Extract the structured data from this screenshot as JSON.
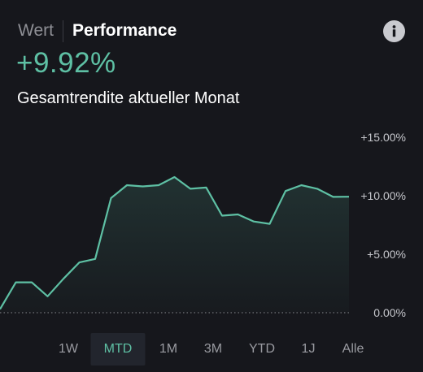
{
  "tabs": [
    {
      "label": "Wert",
      "active": false
    },
    {
      "label": "Performance",
      "active": true
    }
  ],
  "info_icon": "info-icon",
  "performance": {
    "value": "+9.92%",
    "subtitle": "Gesamtrendite aktueller Monat"
  },
  "colors": {
    "accent": "#5ec0a4",
    "background": "#16171c",
    "baseline": "#8a8b90"
  },
  "chart_data": {
    "type": "area",
    "x": [
      0,
      1,
      2,
      3,
      4,
      5,
      6,
      7,
      8,
      9,
      10,
      11,
      12,
      13,
      14,
      15,
      16,
      17,
      18,
      19,
      20,
      21,
      22
    ],
    "values": [
      0.3,
      2.6,
      2.6,
      1.4,
      2.9,
      4.3,
      4.6,
      9.8,
      10.9,
      10.8,
      10.9,
      11.6,
      10.6,
      10.7,
      8.3,
      8.4,
      7.8,
      7.6,
      10.4,
      10.9,
      10.6,
      9.9,
      9.92
    ],
    "ylim": [
      0,
      15
    ],
    "yticks": [
      {
        "value": 15,
        "label": "+15.00%"
      },
      {
        "value": 10,
        "label": "+10.00%"
      },
      {
        "value": 5,
        "label": "+5.00%"
      },
      {
        "value": 0,
        "label": "0.00%"
      }
    ],
    "baseline_dotted": true,
    "grid": false
  },
  "ranges": [
    {
      "label": "1W",
      "active": false
    },
    {
      "label": "MTD",
      "active": true
    },
    {
      "label": "1M",
      "active": false
    },
    {
      "label": "3M",
      "active": false
    },
    {
      "label": "YTD",
      "active": false
    },
    {
      "label": "1J",
      "active": false
    },
    {
      "label": "Alle",
      "active": false
    }
  ]
}
